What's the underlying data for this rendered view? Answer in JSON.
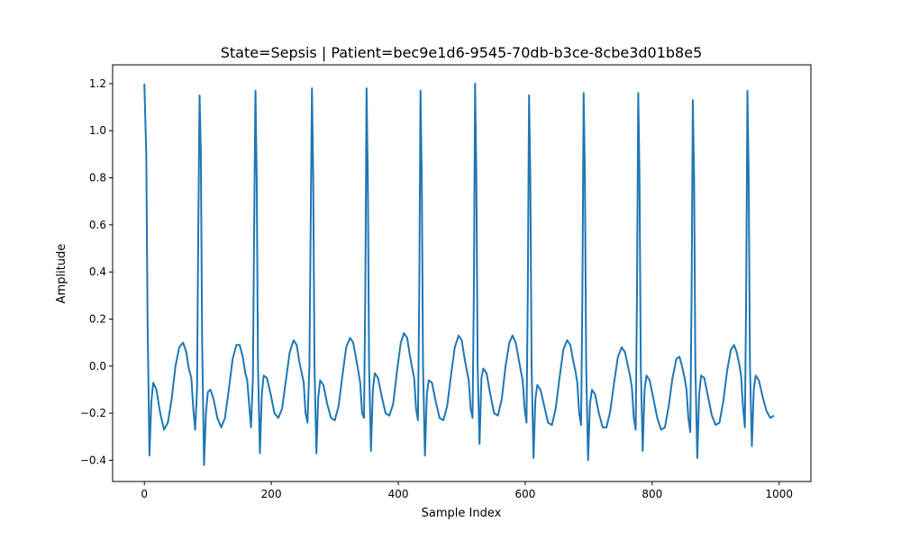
{
  "chart_data": {
    "type": "line",
    "title": "State=Sepsis | Patient=bec9e1d6-9545-70db-b3ce-8cbe3d01b8e5",
    "xlabel": "Sample Index",
    "ylabel": "Amplitude",
    "xlim": [
      -50,
      1050
    ],
    "ylim": [
      -0.49,
      1.28
    ],
    "xticks": [
      0,
      200,
      400,
      600,
      800,
      1000
    ],
    "xtick_labels": [
      "0",
      "200",
      "400",
      "600",
      "800",
      "1000"
    ],
    "yticks": [
      -0.4,
      -0.2,
      0.0,
      0.2,
      0.4,
      0.6,
      0.8,
      1.0,
      1.2
    ],
    "ytick_labels": [
      "−0.4",
      "−0.2",
      "0.0",
      "0.2",
      "0.4",
      "0.6",
      "0.8",
      "1.0",
      "1.2"
    ],
    "grid": false,
    "color": "#1f77b4",
    "series": [
      {
        "values": [
          [
            0,
            1.2
          ],
          [
            3,
            0.9
          ],
          [
            5,
            0.2
          ],
          [
            8,
            -0.38
          ],
          [
            11,
            -0.15
          ],
          [
            14,
            -0.07
          ],
          [
            19,
            -0.1
          ],
          [
            25,
            -0.2
          ],
          [
            31,
            -0.27
          ],
          [
            37,
            -0.24
          ],
          [
            43,
            -0.14
          ],
          [
            49,
            0.0
          ],
          [
            55,
            0.08
          ],
          [
            61,
            0.1
          ],
          [
            66,
            0.06
          ],
          [
            70,
            -0.01
          ],
          [
            74,
            -0.05
          ],
          [
            77,
            -0.18
          ],
          [
            80,
            -0.27
          ],
          [
            83,
            -0.1
          ],
          [
            85,
            0.6
          ],
          [
            87,
            1.15
          ],
          [
            89,
            0.9
          ],
          [
            91,
            0.1
          ],
          [
            94,
            -0.42
          ],
          [
            97,
            -0.2
          ],
          [
            100,
            -0.11
          ],
          [
            104,
            -0.1
          ],
          [
            109,
            -0.14
          ],
          [
            115,
            -0.22
          ],
          [
            121,
            -0.26
          ],
          [
            127,
            -0.22
          ],
          [
            133,
            -0.1
          ],
          [
            139,
            0.03
          ],
          [
            145,
            0.09
          ],
          [
            150,
            0.09
          ],
          [
            155,
            0.04
          ],
          [
            159,
            -0.03
          ],
          [
            162,
            -0.06
          ],
          [
            165,
            -0.16
          ],
          [
            168,
            -0.26
          ],
          [
            171,
            -0.05
          ],
          [
            173,
            0.6
          ],
          [
            175,
            1.17
          ],
          [
            177,
            0.8
          ],
          [
            179,
            0.0
          ],
          [
            182,
            -0.37
          ],
          [
            185,
            -0.12
          ],
          [
            188,
            -0.04
          ],
          [
            193,
            -0.05
          ],
          [
            199,
            -0.12
          ],
          [
            205,
            -0.2
          ],
          [
            211,
            -0.22
          ],
          [
            217,
            -0.18
          ],
          [
            223,
            -0.06
          ],
          [
            229,
            0.06
          ],
          [
            235,
            0.11
          ],
          [
            240,
            0.09
          ],
          [
            244,
            0.02
          ],
          [
            248,
            -0.03
          ],
          [
            251,
            -0.07
          ],
          [
            254,
            -0.2
          ],
          [
            257,
            -0.24
          ],
          [
            260,
            0.0
          ],
          [
            262,
            0.6
          ],
          [
            264,
            1.18
          ],
          [
            266,
            0.8
          ],
          [
            268,
            0.0
          ],
          [
            271,
            -0.37
          ],
          [
            274,
            -0.13
          ],
          [
            277,
            -0.06
          ],
          [
            282,
            -0.08
          ],
          [
            288,
            -0.16
          ],
          [
            294,
            -0.22
          ],
          [
            300,
            -0.23
          ],
          [
            306,
            -0.17
          ],
          [
            312,
            -0.04
          ],
          [
            318,
            0.08
          ],
          [
            324,
            0.12
          ],
          [
            329,
            0.1
          ],
          [
            333,
            0.04
          ],
          [
            337,
            -0.02
          ],
          [
            340,
            -0.07
          ],
          [
            343,
            -0.2
          ],
          [
            346,
            -0.22
          ],
          [
            348,
            0.3
          ],
          [
            350,
            1.18
          ],
          [
            352,
            0.8
          ],
          [
            354,
            0.0
          ],
          [
            357,
            -0.36
          ],
          [
            360,
            -0.1
          ],
          [
            363,
            -0.03
          ],
          [
            368,
            -0.05
          ],
          [
            374,
            -0.13
          ],
          [
            380,
            -0.2
          ],
          [
            386,
            -0.21
          ],
          [
            392,
            -0.16
          ],
          [
            398,
            -0.02
          ],
          [
            404,
            0.1
          ],
          [
            409,
            0.14
          ],
          [
            414,
            0.12
          ],
          [
            418,
            0.05
          ],
          [
            422,
            -0.01
          ],
          [
            425,
            -0.05
          ],
          [
            428,
            -0.18
          ],
          [
            431,
            -0.23
          ],
          [
            433,
            0.3
          ],
          [
            435,
            1.17
          ],
          [
            437,
            0.8
          ],
          [
            439,
            0.0
          ],
          [
            442,
            -0.38
          ],
          [
            445,
            -0.12
          ],
          [
            448,
            -0.06
          ],
          [
            453,
            -0.07
          ],
          [
            459,
            -0.15
          ],
          [
            465,
            -0.22
          ],
          [
            471,
            -0.23
          ],
          [
            477,
            -0.17
          ],
          [
            483,
            -0.04
          ],
          [
            489,
            0.08
          ],
          [
            495,
            0.13
          ],
          [
            500,
            0.11
          ],
          [
            504,
            0.04
          ],
          [
            508,
            -0.02
          ],
          [
            511,
            -0.06
          ],
          [
            514,
            -0.18
          ],
          [
            517,
            -0.22
          ],
          [
            519,
            0.3
          ],
          [
            521,
            1.2
          ],
          [
            523,
            0.8
          ],
          [
            525,
            0.0
          ],
          [
            528,
            -0.33
          ],
          [
            531,
            -0.05
          ],
          [
            534,
            -0.01
          ],
          [
            539,
            -0.03
          ],
          [
            545,
            -0.12
          ],
          [
            551,
            -0.2
          ],
          [
            557,
            -0.21
          ],
          [
            563,
            -0.14
          ],
          [
            569,
            0.0
          ],
          [
            575,
            0.1
          ],
          [
            580,
            0.13
          ],
          [
            585,
            0.1
          ],
          [
            589,
            0.04
          ],
          [
            593,
            -0.02
          ],
          [
            596,
            -0.06
          ],
          [
            599,
            -0.18
          ],
          [
            602,
            -0.24
          ],
          [
            604,
            0.3
          ],
          [
            606,
            1.15
          ],
          [
            608,
            0.8
          ],
          [
            610,
            0.0
          ],
          [
            613,
            -0.39
          ],
          [
            616,
            -0.14
          ],
          [
            619,
            -0.08
          ],
          [
            624,
            -0.1
          ],
          [
            630,
            -0.17
          ],
          [
            636,
            -0.24
          ],
          [
            642,
            -0.25
          ],
          [
            648,
            -0.18
          ],
          [
            654,
            -0.05
          ],
          [
            660,
            0.07
          ],
          [
            666,
            0.11
          ],
          [
            671,
            0.09
          ],
          [
            675,
            0.03
          ],
          [
            679,
            -0.02
          ],
          [
            682,
            -0.07
          ],
          [
            685,
            -0.2
          ],
          [
            688,
            -0.25
          ],
          [
            690,
            0.3
          ],
          [
            692,
            1.16
          ],
          [
            694,
            0.8
          ],
          [
            696,
            0.0
          ],
          [
            699,
            -0.4
          ],
          [
            702,
            -0.16
          ],
          [
            705,
            -0.1
          ],
          [
            710,
            -0.12
          ],
          [
            716,
            -0.2
          ],
          [
            722,
            -0.26
          ],
          [
            728,
            -0.26
          ],
          [
            734,
            -0.19
          ],
          [
            740,
            -0.07
          ],
          [
            746,
            0.04
          ],
          [
            752,
            0.08
          ],
          [
            757,
            0.06
          ],
          [
            761,
            0.01
          ],
          [
            765,
            -0.04
          ],
          [
            768,
            -0.09
          ],
          [
            771,
            -0.22
          ],
          [
            774,
            -0.27
          ],
          [
            776,
            0.3
          ],
          [
            778,
            1.16
          ],
          [
            780,
            0.8
          ],
          [
            782,
            0.0
          ],
          [
            785,
            -0.36
          ],
          [
            788,
            -0.1
          ],
          [
            791,
            -0.04
          ],
          [
            796,
            -0.06
          ],
          [
            802,
            -0.14
          ],
          [
            808,
            -0.22
          ],
          [
            814,
            -0.27
          ],
          [
            820,
            -0.26
          ],
          [
            826,
            -0.17
          ],
          [
            832,
            -0.05
          ],
          [
            838,
            0.03
          ],
          [
            843,
            0.04
          ],
          [
            847,
            0.0
          ],
          [
            851,
            -0.05
          ],
          [
            854,
            -0.1
          ],
          [
            857,
            -0.22
          ],
          [
            860,
            -0.28
          ],
          [
            862,
            0.3
          ],
          [
            864,
            1.13
          ],
          [
            866,
            0.8
          ],
          [
            868,
            0.0
          ],
          [
            871,
            -0.39
          ],
          [
            874,
            -0.12
          ],
          [
            877,
            -0.04
          ],
          [
            882,
            -0.05
          ],
          [
            888,
            -0.13
          ],
          [
            894,
            -0.21
          ],
          [
            900,
            -0.25
          ],
          [
            906,
            -0.24
          ],
          [
            912,
            -0.15
          ],
          [
            918,
            -0.02
          ],
          [
            924,
            0.07
          ],
          [
            929,
            0.09
          ],
          [
            933,
            0.06
          ],
          [
            937,
            0.01
          ],
          [
            940,
            -0.04
          ],
          [
            943,
            -0.17
          ],
          [
            946,
            -0.26
          ],
          [
            948,
            0.3
          ],
          [
            950,
            1.17
          ],
          [
            952,
            0.8
          ],
          [
            954,
            0.0
          ],
          [
            957,
            -0.34
          ],
          [
            960,
            -0.1
          ],
          [
            963,
            -0.04
          ],
          [
            968,
            -0.06
          ],
          [
            974,
            -0.13
          ],
          [
            980,
            -0.19
          ],
          [
            986,
            -0.22
          ],
          [
            992,
            -0.21
          ]
        ]
      }
    ]
  }
}
